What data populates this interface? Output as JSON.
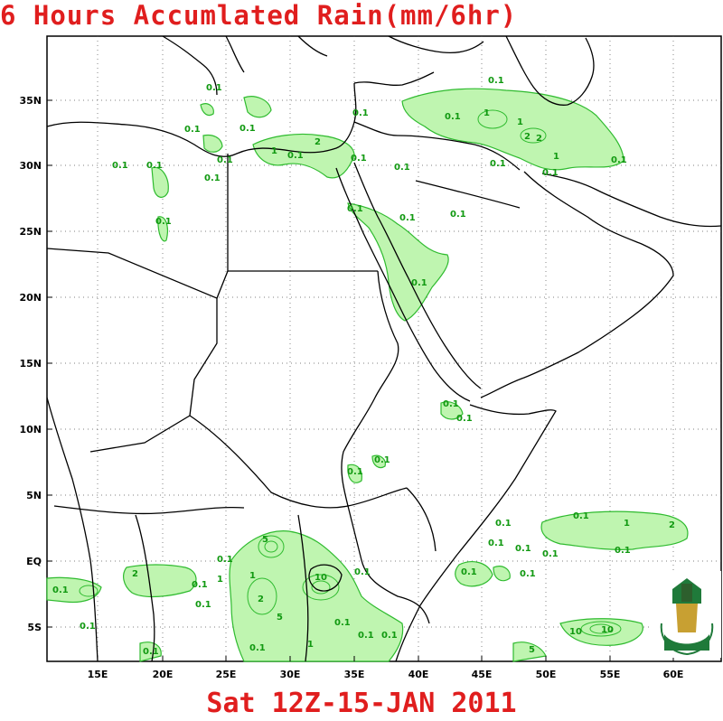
{
  "title": "6 Hours Accumlated Rain(mm/6hr)",
  "footer": "Sat 12Z-15-JAN 2011",
  "colors": {
    "title": "#e01e1e",
    "rain_fill": "#bff5b0",
    "rain_line": "#2fbb2f",
    "coast": "#000000"
  },
  "axes": {
    "lat_labels": [
      "35N",
      "30N",
      "25N",
      "20N",
      "15N",
      "10N",
      "5N",
      "EQ",
      "5S"
    ],
    "lon_labels": [
      "15E",
      "20E",
      "25E",
      "30E",
      "35E",
      "40E",
      "45E",
      "50E",
      "55E",
      "60E"
    ]
  },
  "contour_labels": [
    "0.1",
    "1",
    "2",
    "5",
    "10"
  ],
  "logo": {
    "name": "university-seal"
  }
}
